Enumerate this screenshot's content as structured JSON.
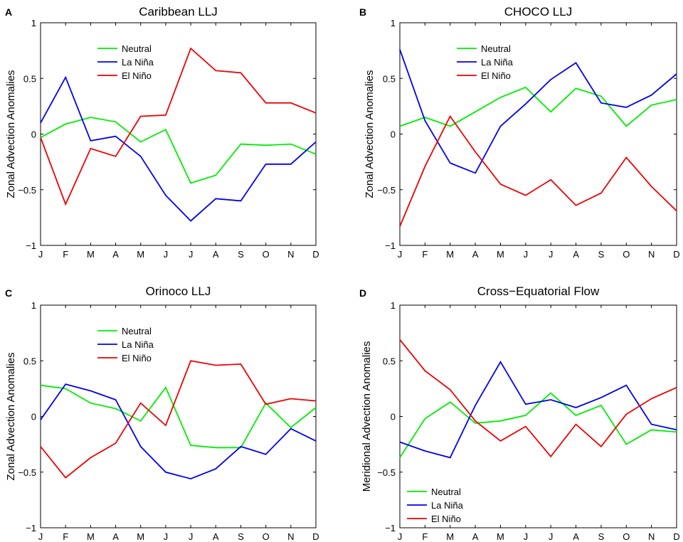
{
  "colors": {
    "Neutral": "#00ee00",
    "La Niña": "#0000ee",
    "El Niño": "#ee0000"
  },
  "chart_data": [
    {
      "type": "line",
      "letter": "A",
      "title": "Caribbean LLJ",
      "xlabel": "",
      "ylabel": "Zonal Advection Anomalies",
      "categories": [
        "J",
        "F",
        "M",
        "A",
        "M",
        "J",
        "J",
        "A",
        "S",
        "O",
        "N",
        "D"
      ],
      "ylim": [
        -1,
        1
      ],
      "yticks": [
        -1,
        -0.5,
        0,
        0.5,
        1
      ],
      "ytick_labels": [
        "−1",
        "−0.5",
        "0",
        "0.5",
        "1"
      ],
      "legend_position": "upper-left",
      "series": [
        {
          "name": "Neutral",
          "values": [
            -0.03,
            0.09,
            0.15,
            0.11,
            -0.07,
            0.04,
            -0.44,
            -0.37,
            -0.09,
            -0.1,
            -0.09,
            -0.18
          ]
        },
        {
          "name": "La Niña",
          "values": [
            0.1,
            0.51,
            -0.06,
            -0.02,
            -0.2,
            -0.55,
            -0.78,
            -0.58,
            -0.6,
            -0.27,
            -0.27,
            -0.07
          ]
        },
        {
          "name": "El Niño",
          "values": [
            -0.03,
            -0.63,
            -0.13,
            -0.2,
            0.16,
            0.17,
            0.77,
            0.57,
            0.55,
            0.28,
            0.28,
            0.19
          ]
        }
      ]
    },
    {
      "type": "line",
      "letter": "B",
      "title": "CHOCO LLJ",
      "xlabel": "",
      "ylabel": "Zonal Advection Anomalies",
      "categories": [
        "J",
        "F",
        "M",
        "A",
        "M",
        "J",
        "J",
        "A",
        "S",
        "O",
        "N",
        "D"
      ],
      "ylim": [
        -1,
        1
      ],
      "yticks": [
        -1,
        -0.5,
        0,
        0.5,
        1
      ],
      "ytick_labels": [
        "−1",
        "−0.5",
        "0",
        "0.5",
        "1"
      ],
      "legend_position": "upper-left",
      "series": [
        {
          "name": "Neutral",
          "values": [
            0.07,
            0.15,
            0.07,
            0.2,
            0.33,
            0.42,
            0.2,
            0.41,
            0.34,
            0.07,
            0.26,
            0.31
          ]
        },
        {
          "name": "La Niña",
          "values": [
            0.76,
            0.12,
            -0.26,
            -0.35,
            0.07,
            0.27,
            0.49,
            0.64,
            0.28,
            0.24,
            0.35,
            0.54
          ]
        },
        {
          "name": "El Niño",
          "values": [
            -0.83,
            -0.29,
            0.16,
            -0.16,
            -0.45,
            -0.55,
            -0.41,
            -0.64,
            -0.53,
            -0.21,
            -0.47,
            -0.69
          ]
        }
      ]
    },
    {
      "type": "line",
      "letter": "C",
      "title": "Orinoco LLJ",
      "xlabel": "",
      "ylabel": "Zonal Advection Anomalies",
      "categories": [
        "J",
        "F",
        "M",
        "A",
        "M",
        "J",
        "J",
        "A",
        "S",
        "O",
        "N",
        "D"
      ],
      "ylim": [
        -1,
        1
      ],
      "yticks": [
        -1,
        -0.5,
        0,
        0.5,
        1
      ],
      "ytick_labels": [
        "−1",
        "−0.5",
        "0",
        "0.5",
        "1"
      ],
      "legend_position": "upper-left",
      "series": [
        {
          "name": "Neutral",
          "values": [
            0.28,
            0.25,
            0.12,
            0.07,
            -0.04,
            0.26,
            -0.26,
            -0.28,
            -0.28,
            0.12,
            -0.1,
            0.08
          ]
        },
        {
          "name": "La Niña",
          "values": [
            -0.03,
            0.29,
            0.23,
            0.15,
            -0.27,
            -0.5,
            -0.56,
            -0.47,
            -0.27,
            -0.34,
            -0.11,
            -0.22
          ]
        },
        {
          "name": "El Niño",
          "values": [
            -0.27,
            -0.55,
            -0.37,
            -0.24,
            0.12,
            -0.08,
            0.5,
            0.46,
            0.47,
            0.11,
            0.16,
            0.14
          ]
        }
      ]
    },
    {
      "type": "line",
      "letter": "D",
      "title": "Cross−Equatorial Flow",
      "xlabel": "",
      "ylabel": "Meridional Advection Anomalies",
      "categories": [
        "J",
        "F",
        "M",
        "A",
        "M",
        "J",
        "J",
        "A",
        "S",
        "O",
        "N",
        "D"
      ],
      "ylim": [
        -1,
        1
      ],
      "yticks": [
        -1,
        -0.5,
        0,
        0.5,
        1
      ],
      "ytick_labels": [
        "−1",
        "−0.5",
        "0",
        "0.5",
        "1"
      ],
      "legend_position": "lower-left",
      "series": [
        {
          "name": "Neutral",
          "values": [
            -0.37,
            -0.02,
            0.13,
            -0.06,
            -0.04,
            0.01,
            0.21,
            0.01,
            0.1,
            -0.25,
            -0.12,
            -0.14
          ]
        },
        {
          "name": "La Niña",
          "values": [
            -0.23,
            -0.31,
            -0.37,
            0.1,
            0.49,
            0.11,
            0.15,
            0.08,
            0.17,
            0.28,
            -0.07,
            -0.12
          ]
        },
        {
          "name": "El Niño",
          "values": [
            0.69,
            0.41,
            0.24,
            -0.04,
            -0.22,
            -0.09,
            -0.36,
            -0.07,
            -0.27,
            0.02,
            0.16,
            0.26
          ]
        }
      ]
    }
  ]
}
